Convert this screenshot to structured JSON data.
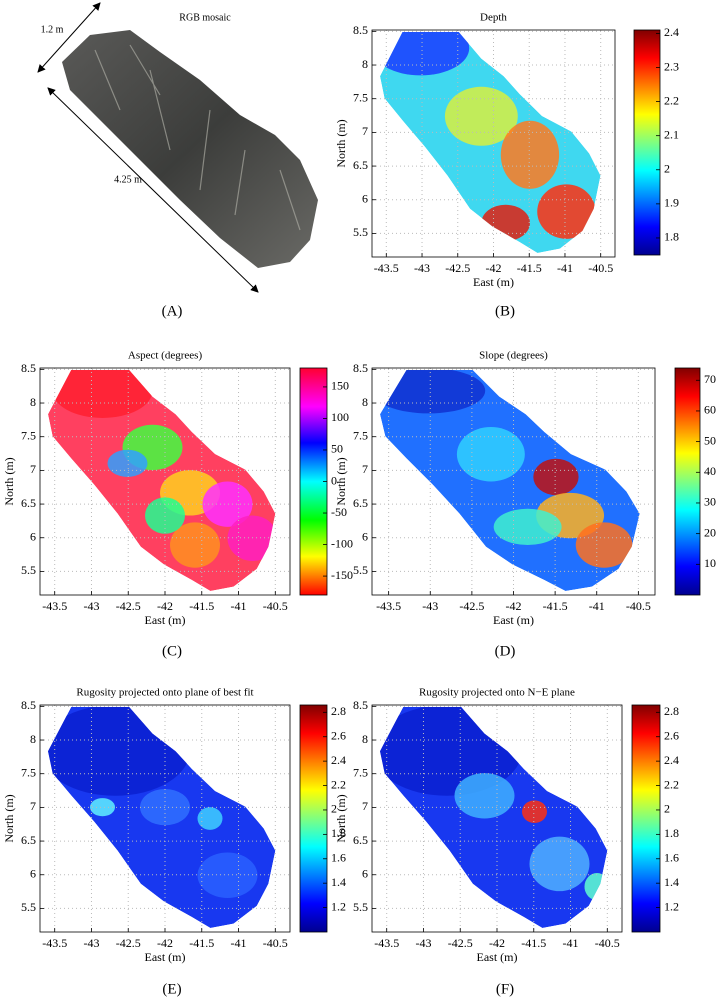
{
  "chart_data": [
    {
      "type": "image",
      "title": "RGB mosaic",
      "annotations": [
        "1.2 m",
        "4.25 m"
      ],
      "caption": "(A)"
    },
    {
      "type": "heatmap",
      "title": "Depth",
      "x_label": "East (m)",
      "y_label": "North (m)",
      "xlim": [
        -43.7,
        -40.3
      ],
      "ylim": [
        5.15,
        8.52
      ],
      "xticks": [
        -43.5,
        -43,
        -42.5,
        -42,
        -41.5,
        -41,
        -40.5
      ],
      "yticks": [
        5.5,
        6,
        6.5,
        7,
        7.5,
        8,
        8.5
      ],
      "grid": true,
      "colormap": "jet",
      "colorbar_lim": [
        1.75,
        2.41
      ],
      "colorbar_ticks": [
        1.8,
        1.9,
        2,
        2.1,
        2.2,
        2.3,
        2.4
      ],
      "caption": "(B)"
    },
    {
      "type": "heatmap",
      "title": "Aspect (degrees)",
      "x_label": "East (m)",
      "y_label": "North (m)",
      "xlim": [
        -43.7,
        -40.3
      ],
      "ylim": [
        5.15,
        8.52
      ],
      "xticks": [
        -43.5,
        -43,
        -42.5,
        -42,
        -41.5,
        -41,
        -40.5
      ],
      "yticks": [
        5.5,
        6,
        6.5,
        7,
        7.5,
        8,
        8.5
      ],
      "grid": true,
      "colormap": "hsv",
      "colorbar_lim": [
        -180,
        180
      ],
      "colorbar_ticks": [
        -150,
        -100,
        -50,
        0,
        50,
        100,
        150
      ],
      "caption": "(C)"
    },
    {
      "type": "heatmap",
      "title": "Slope (degrees)",
      "x_label": "East (m)",
      "y_label": "North (m)",
      "xlim": [
        -43.7,
        -40.3
      ],
      "ylim": [
        5.15,
        8.52
      ],
      "xticks": [
        -43.5,
        -43,
        -42.5,
        -42,
        -41.5,
        -41,
        -40.5
      ],
      "yticks": [
        5.5,
        6,
        6.5,
        7,
        7.5,
        8,
        8.5
      ],
      "grid": true,
      "colormap": "jet",
      "colorbar_lim": [
        0,
        74
      ],
      "colorbar_ticks": [
        10,
        20,
        30,
        40,
        50,
        60,
        70
      ],
      "caption": "(D)"
    },
    {
      "type": "heatmap",
      "title": "Rugosity projected onto plane of best fit",
      "x_label": "East (m)",
      "y_label": "North (m)",
      "xlim": [
        -43.7,
        -40.3
      ],
      "ylim": [
        5.15,
        8.52
      ],
      "xticks": [
        -43.5,
        -43,
        -42.5,
        -42,
        -41.5,
        -41,
        -40.5
      ],
      "yticks": [
        5.5,
        6,
        6.5,
        7,
        7.5,
        8,
        8.5
      ],
      "grid": true,
      "colormap": "jet",
      "colorbar_lim": [
        1,
        2.86
      ],
      "colorbar_ticks": [
        1.2,
        1.4,
        1.6,
        1.8,
        2,
        2.2,
        2.4,
        2.6,
        2.8
      ],
      "caption": "(E)"
    },
    {
      "type": "heatmap",
      "title": "Rugosity projected onto N−E plane",
      "x_label": "East (m)",
      "y_label": "North (m)",
      "xlim": [
        -43.7,
        -40.3
      ],
      "ylim": [
        5.15,
        8.52
      ],
      "xticks": [
        -43.5,
        -43,
        -42.5,
        -42,
        -41.5,
        -41,
        -40.5
      ],
      "yticks": [
        5.5,
        6,
        6.5,
        7,
        7.5,
        8,
        8.5
      ],
      "grid": true,
      "colormap": "jet",
      "colorbar_lim": [
        1,
        2.86
      ],
      "colorbar_ticks": [
        1.2,
        1.4,
        1.6,
        1.8,
        2,
        2.2,
        2.4,
        2.6,
        2.8
      ],
      "caption": "(F)"
    }
  ]
}
